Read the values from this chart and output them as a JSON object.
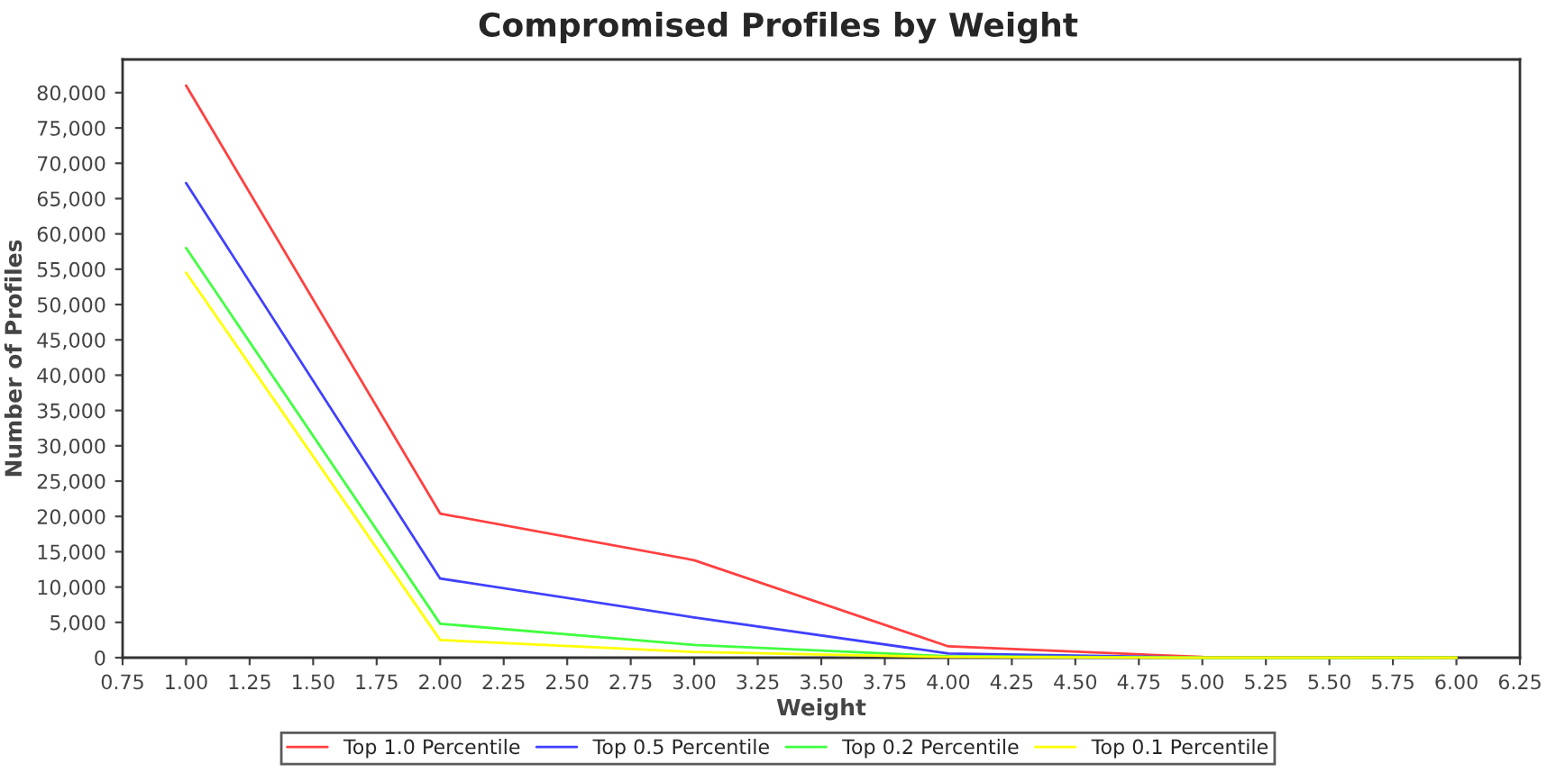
{
  "chart_data": {
    "type": "line",
    "title": "Compromised Profiles by Weight",
    "xlabel": "Weight",
    "ylabel": "Number of Profiles",
    "x": [
      1,
      2,
      3,
      4,
      5,
      6
    ],
    "series": [
      {
        "name": "Top 1.0 Percentile",
        "color": "#ff4040",
        "values": [
          81000,
          20400,
          13800,
          1600,
          100,
          0
        ]
      },
      {
        "name": "Top 0.5 Percentile",
        "color": "#4040ff",
        "values": [
          67200,
          11200,
          5700,
          600,
          0,
          0
        ]
      },
      {
        "name": "Top 0.2 Percentile",
        "color": "#40ff40",
        "values": [
          58000,
          4800,
          1800,
          200,
          0,
          0
        ]
      },
      {
        "name": "Top 0.1 Percentile",
        "color": "#ffff00",
        "values": [
          54500,
          2500,
          800,
          100,
          0,
          0
        ]
      }
    ],
    "xlim": [
      0.75,
      6.25
    ],
    "xticks": [
      {
        "value": 0.75,
        "label": "0.75"
      },
      {
        "value": 1,
        "label": "1.00"
      },
      {
        "value": 1.25,
        "label": "1.25"
      },
      {
        "value": 1.5,
        "label": "1.50"
      },
      {
        "value": 1.75,
        "label": "1.75"
      },
      {
        "value": 2,
        "label": "2.00"
      },
      {
        "value": 2.25,
        "label": "2.25"
      },
      {
        "value": 2.5,
        "label": "2.50"
      },
      {
        "value": 2.75,
        "label": "2.75"
      },
      {
        "value": 3,
        "label": "3.00"
      },
      {
        "value": 3.25,
        "label": "3.25"
      },
      {
        "value": 3.5,
        "label": "3.50"
      },
      {
        "value": 3.75,
        "label": "3.75"
      },
      {
        "value": 4,
        "label": "4.00"
      },
      {
        "value": 4.25,
        "label": "4.25"
      },
      {
        "value": 4.5,
        "label": "4.50"
      },
      {
        "value": 4.75,
        "label": "4.75"
      },
      {
        "value": 5,
        "label": "5.00"
      },
      {
        "value": 5.25,
        "label": "5.25"
      },
      {
        "value": 5.5,
        "label": "5.50"
      },
      {
        "value": 5.75,
        "label": "5.75"
      },
      {
        "value": 6,
        "label": "6.00"
      },
      {
        "value": 6.25,
        "label": "6.25"
      }
    ],
    "ylim": [
      0,
      84700
    ],
    "yticks": [
      0,
      {
        "value": 5000,
        "label": "5,000"
      },
      {
        "value": 10000,
        "label": "10,000"
      },
      {
        "value": 15000,
        "label": "15,000"
      },
      {
        "value": 20000,
        "label": "20,000"
      },
      {
        "value": 25000,
        "label": "25,000"
      },
      {
        "value": 30000,
        "label": "30,000"
      },
      {
        "value": 35000,
        "label": "35,000"
      },
      {
        "value": 40000,
        "label": "40,000"
      },
      {
        "value": 45000,
        "label": "45,000"
      },
      {
        "value": 50000,
        "label": "50,000"
      },
      {
        "value": 55000,
        "label": "55,000"
      },
      {
        "value": 60000,
        "label": "60,000"
      },
      {
        "value": 65000,
        "label": "65,000"
      },
      {
        "value": 70000,
        "label": "70,000"
      },
      {
        "value": 75000,
        "label": "75,000"
      },
      {
        "value": 80000,
        "label": "80,000"
      }
    ],
    "grid": false,
    "legend": "bottom",
    "marker": "none",
    "line_style": "solid"
  }
}
